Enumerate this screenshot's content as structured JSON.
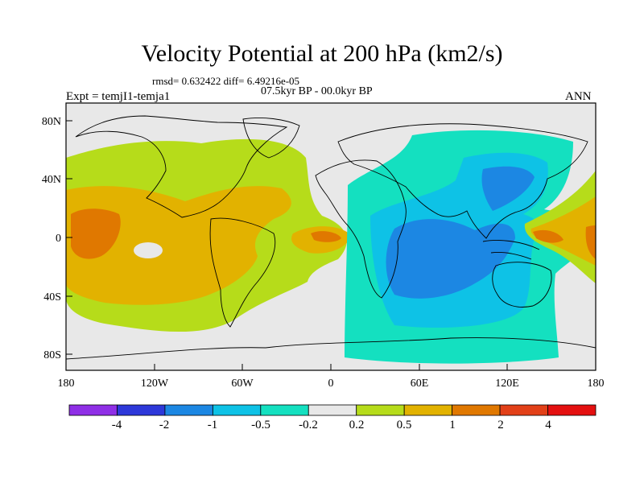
{
  "title": "Velocity Potential at 200 hPa (km2/s)",
  "stats_line": "rmsd= 0.632422 diff= 6.49216e-05",
  "period": "07.5kyr BP - 00.0kyr BP",
  "experiment": "Expt = temjI1-temja1",
  "season": "ANN",
  "lat_ticks": [
    "80N",
    "40N",
    "0",
    "40S",
    "80S"
  ],
  "lon_ticks": [
    "180",
    "120W",
    "60W",
    "0",
    "60E",
    "120E",
    "180"
  ],
  "colorbar": {
    "colors": [
      "#8f2fe6",
      "#2d38d9",
      "#1c87e3",
      "#0ec2e6",
      "#14e0c0",
      "#e8e8e8",
      "#b6dc1a",
      "#e2b200",
      "#e07800",
      "#e24018",
      "#e41010"
    ],
    "labels": [
      "-4",
      "-2",
      "-1",
      "-0.5",
      "-0.2",
      "0.2",
      "0.5",
      "1",
      "2",
      "4"
    ]
  }
}
